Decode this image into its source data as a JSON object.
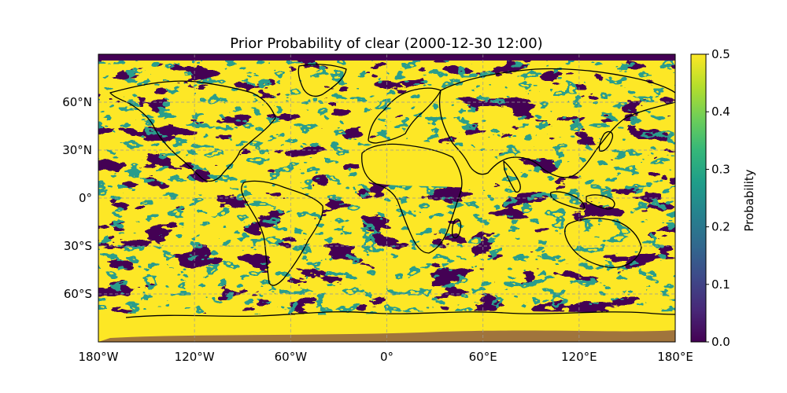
{
  "title": "Prior Probability of clear (2000-12-30 12:00)",
  "map": {
    "projection": "PlateCarree",
    "lon_range": [
      -180,
      180
    ],
    "lat_range": [
      -90,
      90
    ],
    "gridlines": "dashed",
    "coastlines": true,
    "x_ticks": [
      {
        "lon": -180,
        "label": "180°W"
      },
      {
        "lon": -120,
        "label": "120°W"
      },
      {
        "lon": -60,
        "label": "60°W"
      },
      {
        "lon": 0,
        "label": "0°"
      },
      {
        "lon": 60,
        "label": "60°E"
      },
      {
        "lon": 120,
        "label": "120°E"
      },
      {
        "lon": 180,
        "label": "180°E"
      }
    ],
    "y_ticks": [
      {
        "lat": 60,
        "label": "60°N"
      },
      {
        "lat": 30,
        "label": "30°N"
      },
      {
        "lat": 0,
        "label": "0°"
      },
      {
        "lat": -30,
        "label": "30°S"
      },
      {
        "lat": -60,
        "label": "60°S"
      }
    ]
  },
  "colorbar": {
    "label": "Probability",
    "colormap": "viridis",
    "range": [
      0.0,
      0.5
    ],
    "ticks": [
      {
        "value": 0.0,
        "label": "0.0"
      },
      {
        "value": 0.1,
        "label": "0.1"
      },
      {
        "value": 0.2,
        "label": "0.2"
      },
      {
        "value": 0.3,
        "label": "0.3"
      },
      {
        "value": 0.4,
        "label": "0.4"
      },
      {
        "value": 0.5,
        "label": "0.5"
      }
    ],
    "colors": [
      "#440154",
      "#482878",
      "#3e4989",
      "#31688e",
      "#26828e",
      "#1f9e89",
      "#35b779",
      "#6ece58",
      "#b5de2b",
      "#fde725"
    ]
  }
}
